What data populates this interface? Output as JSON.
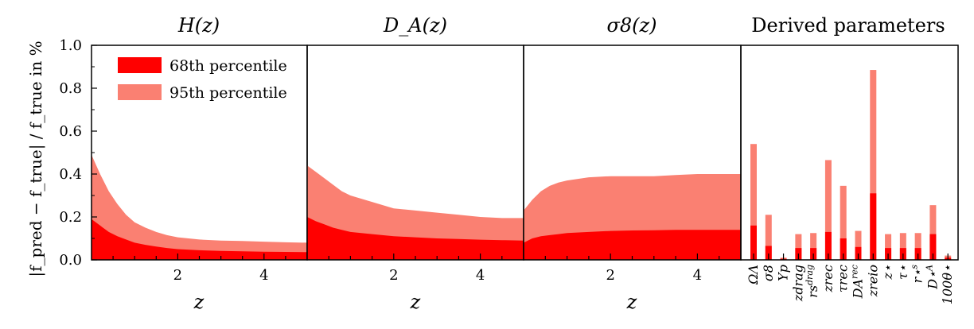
{
  "figure": {
    "ylabel": "|f_pred − f_true| / f_true in %",
    "ylabel_main": "|f",
    "ylabel_parts": {
      "num": "|f_pred − f_true|",
      "den": "f_true",
      "suffix": "in %"
    },
    "colors": {
      "p68": "#ff0000",
      "p95": "#fa8072",
      "axis": "#000000"
    },
    "legend": {
      "placement": "upper-left of first panel",
      "p68_label": "68th percentile",
      "p95_label": "95th percentile"
    }
  },
  "chart_data": [
    {
      "type": "area",
      "title": "H(z)",
      "xlabel": "z",
      "ylabel": "|f_pred − f_true| / f_true in %",
      "xlim": [
        0.0,
        5.0
      ],
      "ylim": [
        0.0,
        1.0
      ],
      "xticks": [
        2,
        4
      ],
      "yticks": [
        0.0,
        0.2,
        0.4,
        0.6,
        0.8,
        1.0
      ],
      "x": [
        0.0,
        0.2,
        0.4,
        0.6,
        0.8,
        1.0,
        1.25,
        1.5,
        1.75,
        2.0,
        2.5,
        3.0,
        3.5,
        4.0,
        4.5,
        5.0
      ],
      "series": [
        {
          "name": "68th percentile",
          "values": [
            0.19,
            0.16,
            0.13,
            0.11,
            0.095,
            0.08,
            0.07,
            0.062,
            0.055,
            0.05,
            0.045,
            0.042,
            0.04,
            0.038,
            0.037,
            0.036
          ]
        },
        {
          "name": "95th percentile",
          "values": [
            0.49,
            0.4,
            0.32,
            0.26,
            0.21,
            0.175,
            0.15,
            0.13,
            0.115,
            0.105,
            0.095,
            0.09,
            0.088,
            0.085,
            0.082,
            0.08
          ]
        }
      ]
    },
    {
      "type": "area",
      "title": "D_A(z)",
      "xlabel": "z",
      "xlim": [
        0.0,
        5.0
      ],
      "ylim": [
        0.0,
        1.0
      ],
      "xticks": [
        2,
        4
      ],
      "x": [
        0.0,
        0.2,
        0.4,
        0.6,
        0.8,
        1.0,
        1.5,
        2.0,
        2.5,
        3.0,
        3.5,
        4.0,
        4.5,
        5.0
      ],
      "series": [
        {
          "name": "68th percentile",
          "values": [
            0.2,
            0.18,
            0.165,
            0.15,
            0.14,
            0.13,
            0.12,
            0.11,
            0.105,
            0.1,
            0.097,
            0.094,
            0.092,
            0.09
          ]
        },
        {
          "name": "95th percentile",
          "values": [
            0.44,
            0.41,
            0.38,
            0.35,
            0.32,
            0.3,
            0.27,
            0.24,
            0.23,
            0.22,
            0.21,
            0.2,
            0.195,
            0.195
          ]
        }
      ]
    },
    {
      "type": "area",
      "title": "σ8(z)",
      "xlabel": "z",
      "xlim": [
        0.0,
        5.0
      ],
      "ylim": [
        0.0,
        1.0
      ],
      "xticks": [
        2,
        4
      ],
      "x": [
        0.0,
        0.2,
        0.4,
        0.6,
        0.8,
        1.0,
        1.5,
        2.0,
        2.5,
        3.0,
        3.5,
        4.0,
        4.5,
        5.0
      ],
      "series": [
        {
          "name": "68th percentile",
          "values": [
            0.08,
            0.1,
            0.11,
            0.115,
            0.12,
            0.125,
            0.13,
            0.135,
            0.137,
            0.138,
            0.14,
            0.14,
            0.14,
            0.14
          ]
        },
        {
          "name": "95th percentile",
          "values": [
            0.23,
            0.28,
            0.32,
            0.345,
            0.36,
            0.37,
            0.385,
            0.39,
            0.39,
            0.39,
            0.395,
            0.4,
            0.4,
            0.4
          ]
        }
      ]
    },
    {
      "type": "bar",
      "title": "Derived parameters",
      "categories": [
        "Ω_Λ",
        "σ_8",
        "Y_p",
        "z_drag",
        "r_s^drag",
        "z_rec",
        "τ_rec",
        "D_A^rec",
        "z_reio",
        "z_⋆",
        "τ_⋆",
        "r_s^⋆",
        "D_A^⋆",
        "100θ_⋆"
      ],
      "category_labels": [
        "ΩΛ",
        "σ8",
        "Yp",
        "zdrag",
        "rs",
        "zrec",
        "τrec",
        "DA",
        "zreio",
        "z⋆",
        "τ⋆",
        "r⋆",
        "D⋆",
        "100θ⋆"
      ],
      "category_sup": [
        "",
        "",
        "",
        "",
        "drag",
        "",
        "",
        "rec",
        "",
        "",
        "",
        "s",
        "A",
        ""
      ],
      "ylim": [
        0.0,
        1.0
      ],
      "series": [
        {
          "name": "68th percentile",
          "values": [
            0.16,
            0.065,
            0.005,
            0.055,
            0.055,
            0.13,
            0.1,
            0.06,
            0.31,
            0.055,
            0.055,
            0.055,
            0.12,
            0.01
          ]
        },
        {
          "name": "95th percentile",
          "values": [
            0.54,
            0.21,
            0.01,
            0.12,
            0.125,
            0.465,
            0.345,
            0.135,
            0.885,
            0.12,
            0.125,
            0.125,
            0.255,
            0.02
          ]
        }
      ]
    }
  ]
}
